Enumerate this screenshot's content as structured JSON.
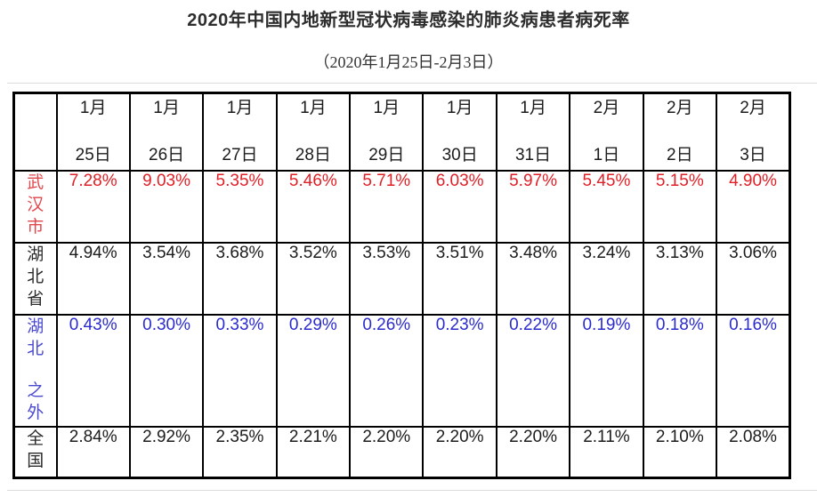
{
  "page": {
    "title": "2020年中国内地新型冠状病毒感染的肺炎病患者病死率",
    "subtitle": "（2020年1月25日-2月3日）"
  },
  "colors": {
    "border": "#000000",
    "wuhan_value": "#e01f26",
    "wuhan_label": "#e2474c",
    "hubei_value": "#1c1c1c",
    "hubei_label": "#2b2b2b",
    "outside_value": "#2b2bcd",
    "outside_label": "#4a4ad0",
    "national_value": "#1c1c1c",
    "national_label": "#2b2b2b"
  },
  "chart_data": {
    "type": "table",
    "title": "2020年中国内地新型冠状病毒感染的肺炎病患者病死率",
    "subtitle": "（2020年1月25日-2月3日）",
    "unit": "percent case fatality rate",
    "columns": [
      {
        "month": "1月",
        "day": "25日"
      },
      {
        "month": "1月",
        "day": "26日"
      },
      {
        "month": "1月",
        "day": "27日"
      },
      {
        "month": "1月",
        "day": "28日"
      },
      {
        "month": "1月",
        "day": "29日"
      },
      {
        "month": "1月",
        "day": "30日"
      },
      {
        "month": "1月",
        "day": "31日"
      },
      {
        "month": "2月",
        "day": "1日"
      },
      {
        "month": "2月",
        "day": "2日"
      },
      {
        "month": "2月",
        "day": "3日"
      }
    ],
    "rows": [
      {
        "label": "武汉市",
        "label_parts": [
          "武汉市"
        ],
        "label_color": "#e2474c",
        "value_color": "#e01f26",
        "values": [
          "7.28%",
          "9.03%",
          "5.35%",
          "5.46%",
          "5.71%",
          "6.03%",
          "5.97%",
          "5.45%",
          "5.15%",
          "4.90%"
        ]
      },
      {
        "label": "湖北省",
        "label_parts": [
          "湖北省"
        ],
        "label_color": "#2b2b2b",
        "value_color": "#1c1c1c",
        "values": [
          "4.94%",
          "3.54%",
          "3.68%",
          "3.52%",
          "3.53%",
          "3.51%",
          "3.48%",
          "3.24%",
          "3.13%",
          "3.06%"
        ]
      },
      {
        "label": "湖北之外",
        "label_parts": [
          "湖北",
          "之外"
        ],
        "label_color": "#4a4ad0",
        "value_color": "#2b2bcd",
        "values": [
          "0.43%",
          "0.30%",
          "0.33%",
          "0.29%",
          "0.26%",
          "0.23%",
          "0.22%",
          "0.19%",
          "0.18%",
          "0.16%"
        ]
      },
      {
        "label": "全国",
        "label_parts": [
          "全国"
        ],
        "label_color": "#2b2b2b",
        "value_color": "#1c1c1c",
        "values": [
          "2.84%",
          "2.92%",
          "2.35%",
          "2.21%",
          "2.20%",
          "2.20%",
          "2.20%",
          "2.11%",
          "2.10%",
          "2.08%"
        ]
      }
    ]
  }
}
